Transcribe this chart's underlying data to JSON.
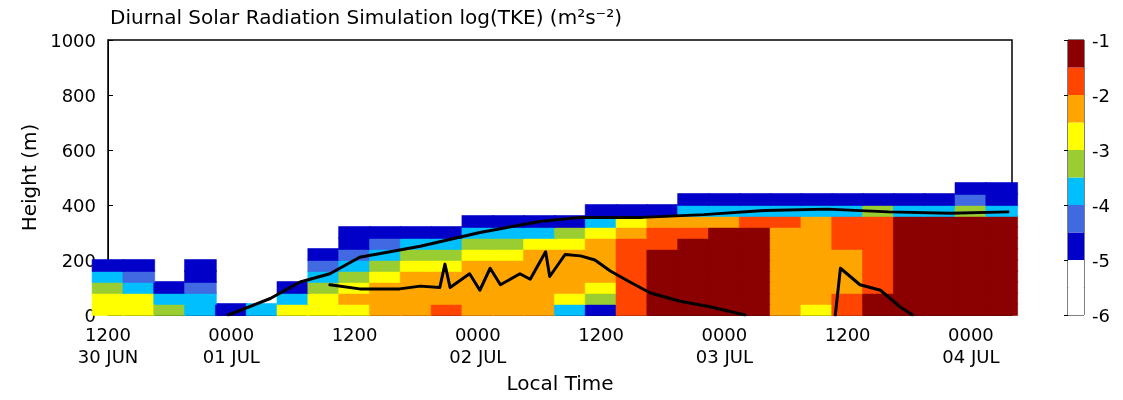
{
  "chart_data": {
    "type": "scatter",
    "title": "Diurnal Solar Radiation Simulation log(TKE) (m²s⁻²)",
    "xlabel": "Local Time",
    "ylabel": "Height (m)",
    "clim": [
      -6,
      -1
    ],
    "cticks": [
      -6,
      -5,
      -4,
      -3,
      -2,
      -1
    ],
    "xlim": [
      "--06-30T12:00",
      "--07-04T04:00"
    ],
    "xticks": [
      {
        "value": "--06-30T12:00",
        "label": "1200\n30 JUN"
      },
      {
        "value": "--07-01T00:00",
        "label": "0000\n01 JUL"
      },
      {
        "value": "--07-01T12:00",
        "label": "1200"
      },
      {
        "value": "--07-02T00:00",
        "label": "0000\n02 JUL"
      },
      {
        "value": "--07-02T12:00",
        "label": "1200"
      },
      {
        "value": "--07-03T00:00",
        "label": "0000\n03 JUL"
      },
      {
        "value": "--07-03T12:00",
        "label": "1200"
      },
      {
        "value": "--07-04T00:00",
        "label": "0000\n04 JUL"
      }
    ],
    "ylim": [
      0,
      1000
    ],
    "yticks": [
      0,
      200,
      400,
      600,
      800,
      1000
    ],
    "grid": false,
    "x": [
      "--06-30T12:00",
      "--06-30T15:00",
      "--06-30T18:00",
      "--06-30T21:00",
      "--07-01T00:00",
      "--07-01T03:00",
      "--07-01T06:00",
      "--07-01T09:00",
      "--07-01T12:00",
      "--07-01T15:00",
      "--07-01T18:00",
      "--07-01T21:00",
      "--07-02T00:00",
      "--07-02T03:00",
      "--07-02T06:00",
      "--07-02T09:00",
      "--07-02T12:00",
      "--07-02T15:00",
      "--07-02T18:00",
      "--07-02T21:00",
      "--07-03T00:00",
      "--07-03T03:00",
      "--07-03T06:00",
      "--07-03T09:00",
      "--07-03T12:00",
      "--07-03T15:00",
      "--07-03T18:00",
      "--07-03T21:00",
      "--07-04T00:00",
      "--07-04T03:00"
    ],
    "series": [
      {
        "marker": "square",
        "values": [
          20,
          20,
          20,
          20,
          20,
          20,
          20,
          20,
          20,
          20,
          20,
          20,
          20,
          20,
          20,
          20,
          20,
          20,
          20,
          20,
          20,
          20,
          20,
          20,
          20,
          20,
          20,
          20,
          20,
          20
        ],
        "cvalues": [
          -2.75,
          -2.75,
          -3.25,
          -3.75,
          -4.75,
          -3.75,
          -2.75,
          -2.75,
          -2.75,
          -2.25,
          -2.25,
          -1.75,
          -2.25,
          -2.25,
          -2.25,
          -3.75,
          -4.75,
          -1.75,
          -1.25,
          -1.25,
          -1.25,
          -1.25,
          -2.25,
          -2.75,
          -1.75,
          -1.25,
          -1.25,
          -1.25,
          -1.25,
          -1.25
        ],
        "colors": [
          "#ffff00",
          "#ffff00",
          "#9acd32",
          "#00bfff",
          "#0000c8",
          "#00bfff",
          "#ffff00",
          "#ffff00",
          "#ffff00",
          "#ffa500",
          "#ffa500",
          "#ff4500",
          "#ffa500",
          "#ffa500",
          "#ffa500",
          "#00bfff",
          "#0000c8",
          "#ff4500",
          "#8b0000",
          "#8b0000",
          "#8b0000",
          "#8b0000",
          "#ffa500",
          "#ffff00",
          "#ff4500",
          "#8b0000",
          "#8b0000",
          "#8b0000",
          "#8b0000",
          "#8b0000"
        ]
      },
      {
        "marker": "square",
        "values": [
          60,
          60,
          60,
          60,
          null,
          null,
          60,
          60,
          60,
          60,
          60,
          60,
          60,
          60,
          60,
          60,
          60,
          60,
          60,
          60,
          60,
          60,
          60,
          60,
          60,
          60,
          60,
          60,
          60,
          60
        ],
        "cvalues": [
          -2.75,
          -2.75,
          -3.75,
          -3.75,
          null,
          null,
          -3.75,
          -2.75,
          -2.25,
          -2.25,
          -2.25,
          -2.25,
          -2.25,
          -2.25,
          -2.25,
          -2.75,
          -3.25,
          -1.75,
          -1.25,
          -1.25,
          -1.25,
          -1.25,
          -2.25,
          -2.25,
          -1.75,
          -1.25,
          -1.25,
          -1.25,
          -1.25,
          -1.25
        ],
        "colors": [
          "#ffff00",
          "#ffff00",
          "#00bfff",
          "#00bfff",
          null,
          null,
          "#00bfff",
          "#ffff00",
          "#ffa500",
          "#ffa500",
          "#ffa500",
          "#ffa500",
          "#ffa500",
          "#ffa500",
          "#ffa500",
          "#ffff00",
          "#9acd32",
          "#ff4500",
          "#8b0000",
          "#8b0000",
          "#8b0000",
          "#8b0000",
          "#ffa500",
          "#ffa500",
          "#ff4500",
          "#8b0000",
          "#8b0000",
          "#8b0000",
          "#8b0000",
          "#8b0000"
        ]
      },
      {
        "marker": "square",
        "values": [
          100,
          100,
          100,
          100,
          null,
          null,
          100,
          100,
          100,
          100,
          100,
          100,
          100,
          100,
          100,
          100,
          100,
          100,
          100,
          100,
          100,
          100,
          100,
          100,
          100,
          100,
          100,
          100,
          100,
          100
        ],
        "cvalues": [
          -3.25,
          -3.75,
          -4.75,
          -4.25,
          null,
          null,
          -4.75,
          -3.25,
          -2.75,
          -2.25,
          -2.25,
          -2.25,
          -2.25,
          -2.25,
          -2.25,
          -2.25,
          -2.75,
          -1.75,
          -1.25,
          -1.25,
          -1.25,
          -1.25,
          -2.25,
          -2.25,
          -2.25,
          -1.75,
          -1.25,
          -1.25,
          -1.25,
          -1.25
        ],
        "colors": [
          "#9acd32",
          "#00bfff",
          "#0000c8",
          "#4169e1",
          null,
          null,
          "#0000c8",
          "#9acd32",
          "#ffff00",
          "#ffa500",
          "#ffa500",
          "#ffa500",
          "#ffa500",
          "#ffa500",
          "#ffa500",
          "#ffa500",
          "#ffff00",
          "#ff4500",
          "#8b0000",
          "#8b0000",
          "#8b0000",
          "#8b0000",
          "#ffa500",
          "#ffa500",
          "#ffa500",
          "#ff4500",
          "#8b0000",
          "#8b0000",
          "#8b0000",
          "#8b0000"
        ]
      },
      {
        "marker": "square",
        "values": [
          140,
          140,
          null,
          140,
          null,
          null,
          null,
          140,
          140,
          140,
          140,
          140,
          140,
          140,
          140,
          140,
          140,
          140,
          140,
          140,
          140,
          140,
          140,
          140,
          140,
          140,
          140,
          140,
          140,
          140
        ],
        "cvalues": [
          -3.75,
          -4.25,
          null,
          -4.75,
          null,
          null,
          null,
          -3.75,
          -3.25,
          -2.75,
          -2.25,
          -2.25,
          -2.25,
          -2.25,
          -2.25,
          -2.25,
          -2.25,
          -1.75,
          -1.25,
          -1.25,
          -1.25,
          -1.25,
          -2.25,
          -2.25,
          -2.25,
          -1.75,
          -1.25,
          -1.25,
          -1.25,
          -1.25
        ],
        "colors": [
          "#00bfff",
          "#4169e1",
          null,
          "#0000c8",
          null,
          null,
          null,
          "#00bfff",
          "#9acd32",
          "#ffff00",
          "#ffa500",
          "#ffa500",
          "#ffa500",
          "#ffa500",
          "#ffa500",
          "#ffa500",
          "#ffa500",
          "#ff4500",
          "#8b0000",
          "#8b0000",
          "#8b0000",
          "#8b0000",
          "#ffa500",
          "#ffa500",
          "#ffa500",
          "#ff4500",
          "#8b0000",
          "#8b0000",
          "#8b0000",
          "#8b0000"
        ]
      },
      {
        "marker": "square",
        "values": [
          180,
          180,
          null,
          180,
          null,
          null,
          null,
          180,
          180,
          180,
          180,
          180,
          180,
          180,
          180,
          180,
          180,
          180,
          180,
          180,
          180,
          180,
          180,
          180,
          180,
          180,
          180,
          180,
          180,
          180
        ],
        "cvalues": [
          -4.75,
          -4.75,
          null,
          -4.75,
          null,
          null,
          null,
          -4.25,
          -3.75,
          -3.25,
          -2.75,
          -2.75,
          -2.25,
          -2.25,
          -2.25,
          -2.25,
          -2.25,
          -1.75,
          -1.25,
          -1.25,
          -1.25,
          -1.25,
          -2.25,
          -2.25,
          -2.25,
          -1.75,
          -1.25,
          -1.25,
          -1.25,
          -1.25
        ],
        "colors": [
          "#0000c8",
          "#0000c8",
          null,
          "#0000c8",
          null,
          null,
          null,
          "#4169e1",
          "#00bfff",
          "#9acd32",
          "#ffff00",
          "#ffff00",
          "#ffa500",
          "#ffa500",
          "#ffa500",
          "#ffa500",
          "#ffa500",
          "#ff4500",
          "#8b0000",
          "#8b0000",
          "#8b0000",
          "#8b0000",
          "#ffa500",
          "#ffa500",
          "#ffa500",
          "#ff4500",
          "#8b0000",
          "#8b0000",
          "#8b0000",
          "#8b0000"
        ]
      },
      {
        "marker": "square",
        "values": [
          null,
          null,
          null,
          null,
          null,
          null,
          null,
          220,
          220,
          220,
          220,
          220,
          220,
          220,
          220,
          220,
          220,
          220,
          220,
          220,
          220,
          220,
          220,
          220,
          220,
          220,
          220,
          220,
          220,
          220
        ],
        "cvalues": [
          null,
          null,
          null,
          null,
          null,
          null,
          null,
          -4.75,
          -4.25,
          -3.75,
          -3.25,
          -3.25,
          -2.75,
          -2.75,
          -2.25,
          -2.25,
          -2.25,
          -1.75,
          -1.25,
          -1.25,
          -1.25,
          -1.25,
          -2.25,
          -2.25,
          -2.25,
          -1.75,
          -1.25,
          -1.25,
          -1.25,
          -1.25
        ],
        "colors": [
          null,
          null,
          null,
          null,
          null,
          null,
          null,
          "#0000c8",
          "#4169e1",
          "#00bfff",
          "#9acd32",
          "#9acd32",
          "#ffff00",
          "#ffff00",
          "#ffa500",
          "#ffa500",
          "#ffa500",
          "#ff4500",
          "#8b0000",
          "#8b0000",
          "#8b0000",
          "#8b0000",
          "#ffa500",
          "#ffa500",
          "#ffa500",
          "#ff4500",
          "#8b0000",
          "#8b0000",
          "#8b0000",
          "#8b0000"
        ]
      },
      {
        "marker": "square",
        "values": [
          null,
          null,
          null,
          null,
          null,
          null,
          null,
          null,
          260,
          260,
          260,
          260,
          260,
          260,
          260,
          260,
          260,
          260,
          260,
          260,
          260,
          260,
          260,
          260,
          260,
          260,
          260,
          260,
          260,
          260
        ],
        "cvalues": [
          null,
          null,
          null,
          null,
          null,
          null,
          null,
          null,
          -4.75,
          -4.25,
          -3.75,
          -3.75,
          -3.25,
          -3.25,
          -2.75,
          -2.75,
          -2.25,
          -1.75,
          -1.75,
          -1.25,
          -1.25,
          -1.25,
          -2.25,
          -2.25,
          -1.75,
          -1.75,
          -1.25,
          -1.25,
          -1.25,
          -1.25
        ],
        "colors": [
          null,
          null,
          null,
          null,
          null,
          null,
          null,
          null,
          "#0000c8",
          "#4169e1",
          "#00bfff",
          "#00bfff",
          "#9acd32",
          "#9acd32",
          "#ffff00",
          "#ffff00",
          "#ffa500",
          "#ff4500",
          "#ff4500",
          "#8b0000",
          "#8b0000",
          "#8b0000",
          "#ffa500",
          "#ffa500",
          "#ff4500",
          "#ff4500",
          "#8b0000",
          "#8b0000",
          "#8b0000",
          "#8b0000"
        ]
      },
      {
        "marker": "square",
        "values": [
          null,
          null,
          null,
          null,
          null,
          null,
          null,
          null,
          300,
          300,
          300,
          300,
          300,
          300,
          300,
          300,
          300,
          300,
          300,
          300,
          300,
          300,
          300,
          300,
          300,
          300,
          300,
          300,
          300,
          300
        ],
        "cvalues": [
          null,
          null,
          null,
          null,
          null,
          null,
          null,
          null,
          -4.75,
          -4.75,
          -4.75,
          -4.75,
          -3.75,
          -3.75,
          -3.75,
          -3.25,
          -2.75,
          -2.25,
          -1.75,
          -1.75,
          -1.25,
          -1.25,
          -2.25,
          -2.25,
          -1.75,
          -1.75,
          -1.25,
          -1.25,
          -1.25,
          -1.25
        ],
        "colors": [
          null,
          null,
          null,
          null,
          null,
          null,
          null,
          null,
          "#0000c8",
          "#0000c8",
          "#0000c8",
          "#0000c8",
          "#00bfff",
          "#00bfff",
          "#00bfff",
          "#9acd32",
          "#ffff00",
          "#ffa500",
          "#ff4500",
          "#ff4500",
          "#8b0000",
          "#8b0000",
          "#ffa500",
          "#ffa500",
          "#ff4500",
          "#ff4500",
          "#8b0000",
          "#8b0000",
          "#8b0000",
          "#8b0000"
        ]
      },
      {
        "marker": "square",
        "values": [
          null,
          null,
          null,
          null,
          null,
          null,
          null,
          null,
          null,
          null,
          null,
          null,
          340,
          340,
          340,
          340,
          340,
          340,
          340,
          340,
          340,
          340,
          340,
          340,
          340,
          340,
          340,
          340,
          340,
          340
        ],
        "cvalues": [
          null,
          null,
          null,
          null,
          null,
          null,
          null,
          null,
          null,
          null,
          null,
          null,
          -4.75,
          -4.75,
          -4.75,
          -4.75,
          -3.75,
          -2.75,
          -2.25,
          -2.25,
          -2.25,
          -1.75,
          -1.75,
          -2.25,
          -1.75,
          -1.75,
          -1.25,
          -1.25,
          -1.25,
          -1.25
        ],
        "colors": [
          null,
          null,
          null,
          null,
          null,
          null,
          null,
          null,
          null,
          null,
          null,
          null,
          "#0000c8",
          "#0000c8",
          "#0000c8",
          "#0000c8",
          "#00bfff",
          "#ffff00",
          "#ffa500",
          "#ffa500",
          "#ffa500",
          "#ff4500",
          "#ff4500",
          "#ffa500",
          "#ff4500",
          "#ff4500",
          "#8b0000",
          "#8b0000",
          "#8b0000",
          "#8b0000"
        ]
      },
      {
        "marker": "square",
        "values": [
          null,
          null,
          null,
          null,
          null,
          null,
          null,
          null,
          null,
          null,
          null,
          null,
          null,
          null,
          null,
          null,
          380,
          380,
          380,
          380,
          380,
          380,
          380,
          380,
          380,
          380,
          380,
          380,
          380,
          380
        ],
        "cvalues": [
          null,
          null,
          null,
          null,
          null,
          null,
          null,
          null,
          null,
          null,
          null,
          null,
          null,
          null,
          null,
          null,
          -4.75,
          -4.75,
          -4.75,
          -3.75,
          -3.75,
          -3.75,
          -3.75,
          -3.75,
          -3.75,
          -3.25,
          -3.75,
          -3.75,
          -3.25,
          -3.75
        ],
        "colors": [
          null,
          null,
          null,
          null,
          null,
          null,
          null,
          null,
          null,
          null,
          null,
          null,
          null,
          null,
          null,
          null,
          "#0000c8",
          "#0000c8",
          "#0000c8",
          "#00bfff",
          "#00bfff",
          "#00bfff",
          "#00bfff",
          "#00bfff",
          "#00bfff",
          "#9acd32",
          "#00bfff",
          "#00bfff",
          "#9acd32",
          "#00bfff"
        ]
      },
      {
        "marker": "square",
        "values": [
          null,
          null,
          null,
          null,
          null,
          null,
          null,
          null,
          null,
          null,
          null,
          null,
          null,
          null,
          null,
          null,
          null,
          null,
          null,
          420,
          420,
          420,
          420,
          420,
          420,
          420,
          420,
          420,
          420,
          420
        ],
        "cvalues": [
          null,
          null,
          null,
          null,
          null,
          null,
          null,
          null,
          null,
          null,
          null,
          null,
          null,
          null,
          null,
          null,
          null,
          null,
          null,
          -4.75,
          -4.75,
          -4.75,
          -4.75,
          -4.75,
          -4.75,
          -4.75,
          -4.75,
          -4.75,
          -4.25,
          -4.75
        ],
        "colors": [
          null,
          null,
          null,
          null,
          null,
          null,
          null,
          null,
          null,
          null,
          null,
          null,
          null,
          null,
          null,
          null,
          null,
          null,
          null,
          "#0000c8",
          "#0000c8",
          "#0000c8",
          "#0000c8",
          "#0000c8",
          "#0000c8",
          "#0000c8",
          "#0000c8",
          "#0000c8",
          "#4169e1",
          "#0000c8"
        ]
      },
      {
        "marker": "square",
        "values": [
          null,
          null,
          null,
          null,
          null,
          null,
          null,
          null,
          null,
          null,
          null,
          null,
          null,
          null,
          null,
          null,
          null,
          null,
          null,
          null,
          null,
          null,
          null,
          null,
          null,
          null,
          null,
          null,
          460,
          460
        ],
        "cvalues": [
          null,
          null,
          null,
          null,
          null,
          null,
          null,
          null,
          null,
          null,
          null,
          null,
          null,
          null,
          null,
          null,
          null,
          null,
          null,
          null,
          null,
          null,
          null,
          null,
          null,
          null,
          null,
          null,
          -4.75,
          -4.75
        ],
        "colors": [
          null,
          null,
          null,
          null,
          null,
          null,
          null,
          null,
          null,
          null,
          null,
          null,
          null,
          null,
          null,
          null,
          null,
          null,
          null,
          null,
          null,
          null,
          null,
          null,
          null,
          null,
          null,
          null,
          "#0000c8",
          "#0000c8"
        ]
      },
      {
        "type": "line",
        "marker": "none",
        "line_style": "solid",
        "color": "#000000",
        "x": [
          "--06-30T23:42",
          "--07-01T03:48",
          "--07-01T06:42",
          "--07-01T09:36",
          "--07-01T12:30",
          "--07-01T18:24",
          "--07-02T00:12",
          "--07-02T06:00",
          "--07-02T10:00",
          "--07-02T16:00",
          "--07-02T22:00",
          "--07-03T04:00",
          "--07-03T10:00",
          "--07-03T16:00",
          "--07-03T22:00",
          "--07-04T03:36"
        ],
        "values": [
          0,
          60,
          120,
          150,
          210,
          250,
          300,
          340,
          355,
          355,
          365,
          380,
          385,
          375,
          370,
          375
        ]
      },
      {
        "type": "line",
        "marker": "none",
        "line_style": "solid",
        "color": "#000000",
        "x": [
          "--07-01T09:36",
          "--07-01T12:30",
          "--07-01T16:24",
          "--07-01T18:24",
          "--07-01T20:18",
          "--07-01T20:48",
          "--07-01T21:18",
          "--07-01T23:12",
          "--07-02T00:12",
          "--07-02T01:12",
          "--07-02T02:12",
          "--07-02T04:06",
          "--07-02T05:06",
          "--07-02T06:36",
          "--07-02T07:00",
          "--07-02T08:30",
          "--07-02T10:00",
          "--07-02T11:24",
          "--07-02T12:54",
          "--07-02T14:48",
          "--07-02T16:48",
          "--07-02T19:42",
          "--07-02T22:36",
          "--07-03T02:00"
        ],
        "values": [
          110,
          95,
          95,
          105,
          100,
          185,
          100,
          150,
          90,
          170,
          110,
          150,
          130,
          230,
          140,
          220,
          215,
          200,
          160,
          120,
          80,
          50,
          30,
          0
        ]
      },
      {
        "type": "line",
        "marker": "none",
        "line_style": "solid",
        "color": "#000000",
        "x": [
          "--07-03T10:48",
          "--07-03T11:18",
          "--07-03T13:12",
          "--07-03T15:12",
          "--07-03T17:06",
          "--07-03T18:18"
        ],
        "values": [
          0,
          170,
          110,
          90,
          30,
          0
        ]
      }
    ]
  }
}
